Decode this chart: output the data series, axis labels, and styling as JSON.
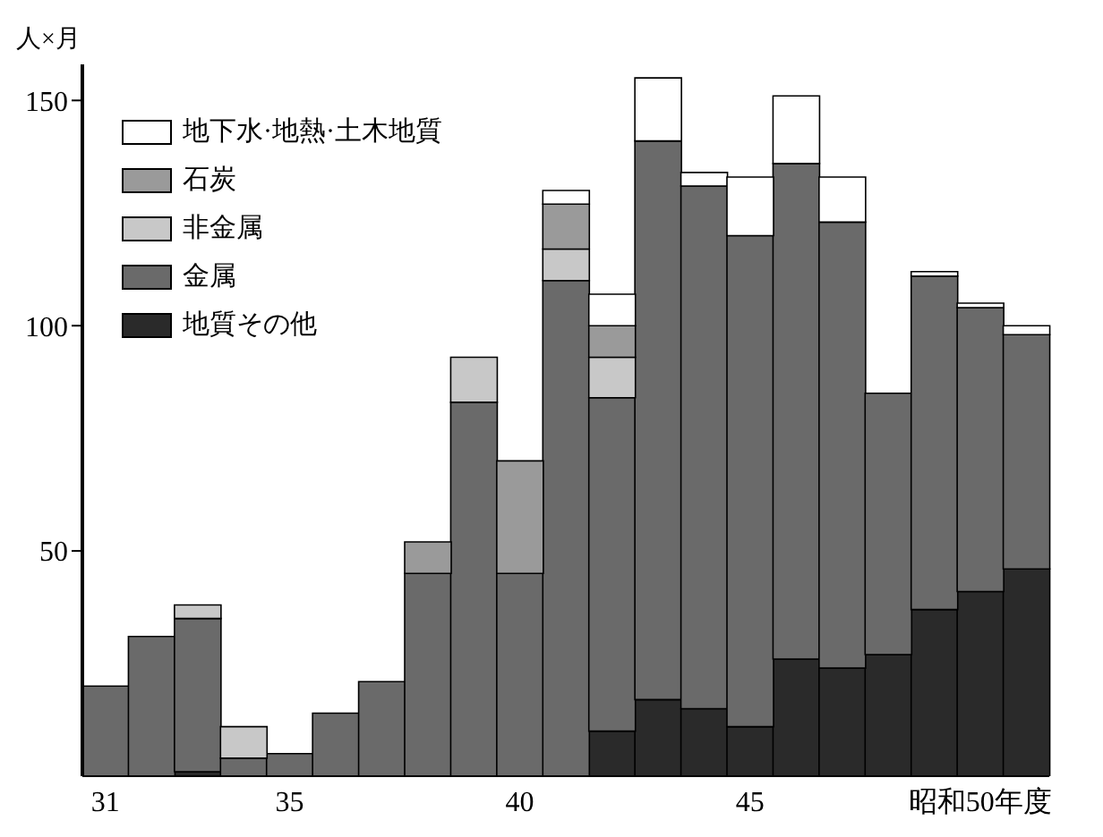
{
  "chart_data": {
    "type": "bar",
    "stacked": true,
    "ylabel": "人×月",
    "categories": [
      "31",
      null,
      null,
      null,
      "35",
      null,
      null,
      null,
      null,
      "40",
      null,
      null,
      null,
      null,
      "45",
      null,
      null,
      null,
      null,
      "昭和50年度",
      null
    ],
    "series": [
      {
        "name": "地質その他",
        "color": "#2a2a2a",
        "values": [
          0,
          0,
          1,
          0,
          0,
          0,
          0,
          0,
          0,
          0,
          0,
          10,
          17,
          15,
          11,
          26,
          24,
          27,
          37,
          41,
          46
        ]
      },
      {
        "name": "金属",
        "color": "#6a6a6a",
        "values": [
          20,
          31,
          34,
          4,
          5,
          14,
          21,
          45,
          83,
          45,
          110,
          74,
          124,
          116,
          109,
          110,
          99,
          58,
          74,
          63,
          52
        ]
      },
      {
        "name": "非金属",
        "color": "#c8c8c8",
        "values": [
          0,
          0,
          3,
          7,
          0,
          0,
          0,
          0,
          10,
          0,
          7,
          9,
          0,
          0,
          0,
          0,
          0,
          0,
          0,
          0,
          0
        ]
      },
      {
        "name": "石炭",
        "color": "#9a9a9a",
        "values": [
          0,
          0,
          0,
          0,
          0,
          0,
          0,
          7,
          0,
          25,
          10,
          7,
          0,
          0,
          0,
          0,
          0,
          0,
          0,
          0,
          0
        ]
      },
      {
        "name": "地下水·地熱·土木地質",
        "color": "#ffffff",
        "values": [
          0,
          0,
          0,
          0,
          0,
          0,
          0,
          0,
          0,
          0,
          3,
          7,
          14,
          3,
          13,
          15,
          10,
          0,
          1,
          1,
          2
        ]
      }
    ],
    "ylim": [
      0,
      158
    ],
    "yticks": [
      50,
      100,
      150
    ],
    "grid": false,
    "legend": "top left"
  }
}
